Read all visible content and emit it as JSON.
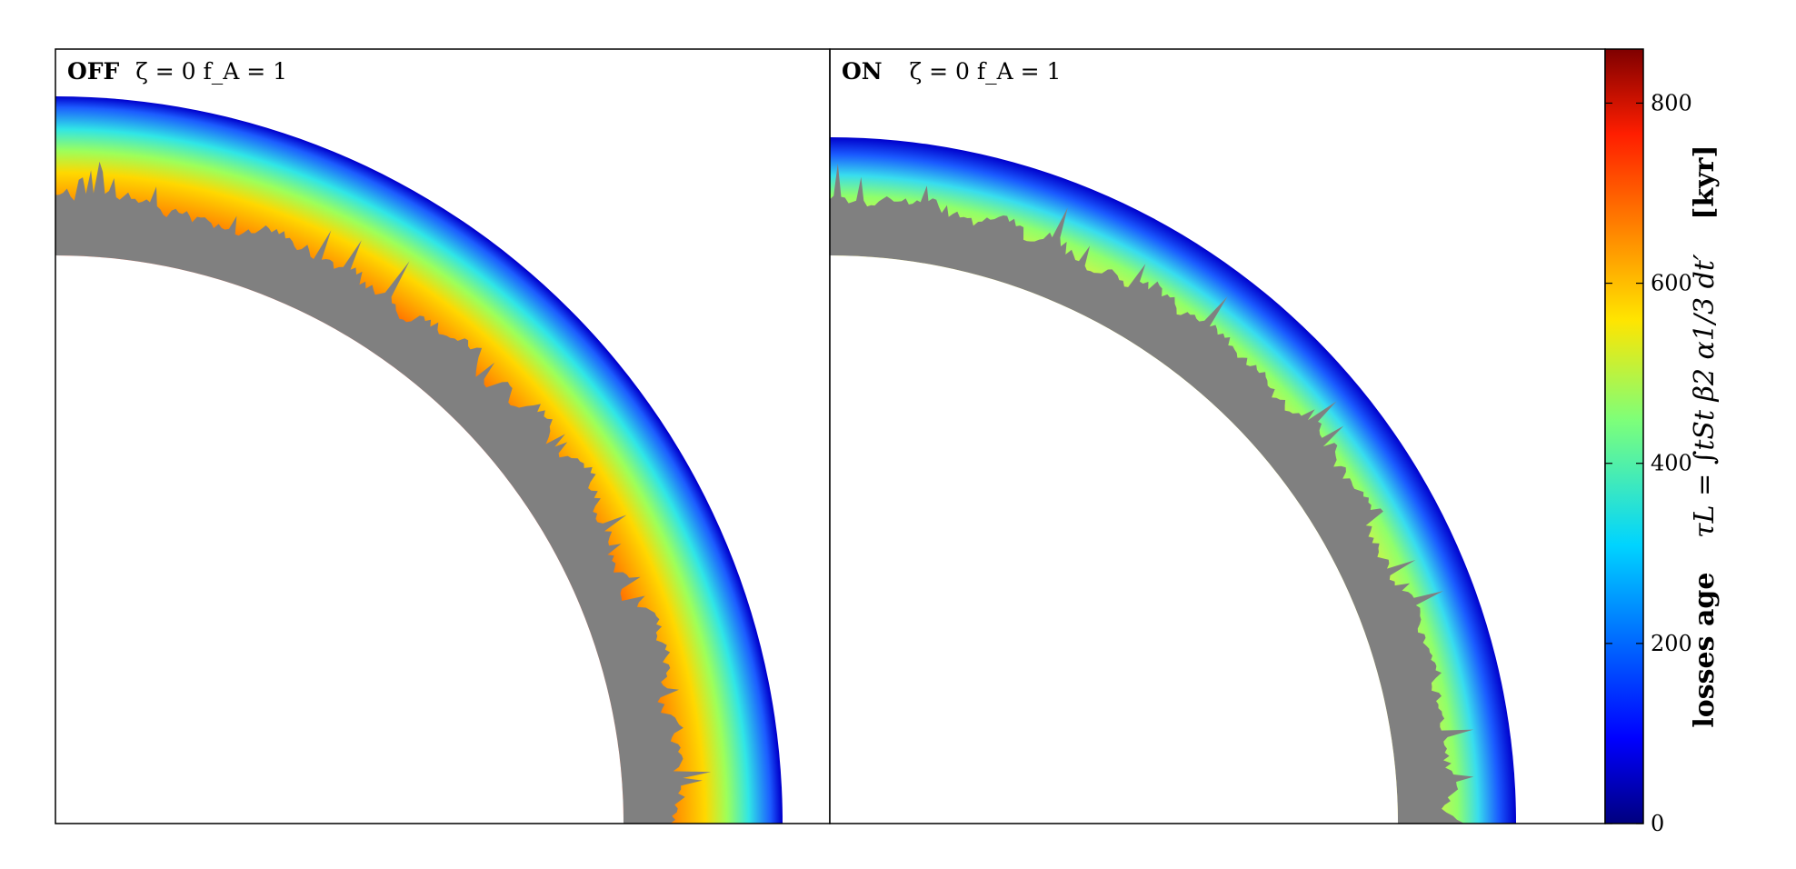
{
  "chart_data": {
    "type": "heatmap",
    "panels": [
      {
        "name": "OFF",
        "label_bold": "OFF",
        "label_rest": "ζ = 0  f_A = 1",
        "variant": "off"
      },
      {
        "name": "ON",
        "label_bold": "ON",
        "label_rest": "ζ = 0  f_A = 1",
        "variant": "on"
      }
    ],
    "colorbar": {
      "colormap": "jet",
      "range": [
        0,
        860
      ],
      "ticks": [
        0,
        200,
        400,
        600,
        800
      ],
      "tick_labels": [
        "0",
        "200",
        "400",
        "600",
        "800"
      ],
      "label": "losses age   τ_L = ∫_{t_S}^{t} β² α^{1/3} dt′   [kyr]",
      "label_parts": {
        "name": "losses age",
        "formula": "τL = ∫tSt β2 α1/3 dt′",
        "unit": "[kyr]"
      }
    },
    "masked_color": "#808080"
  }
}
